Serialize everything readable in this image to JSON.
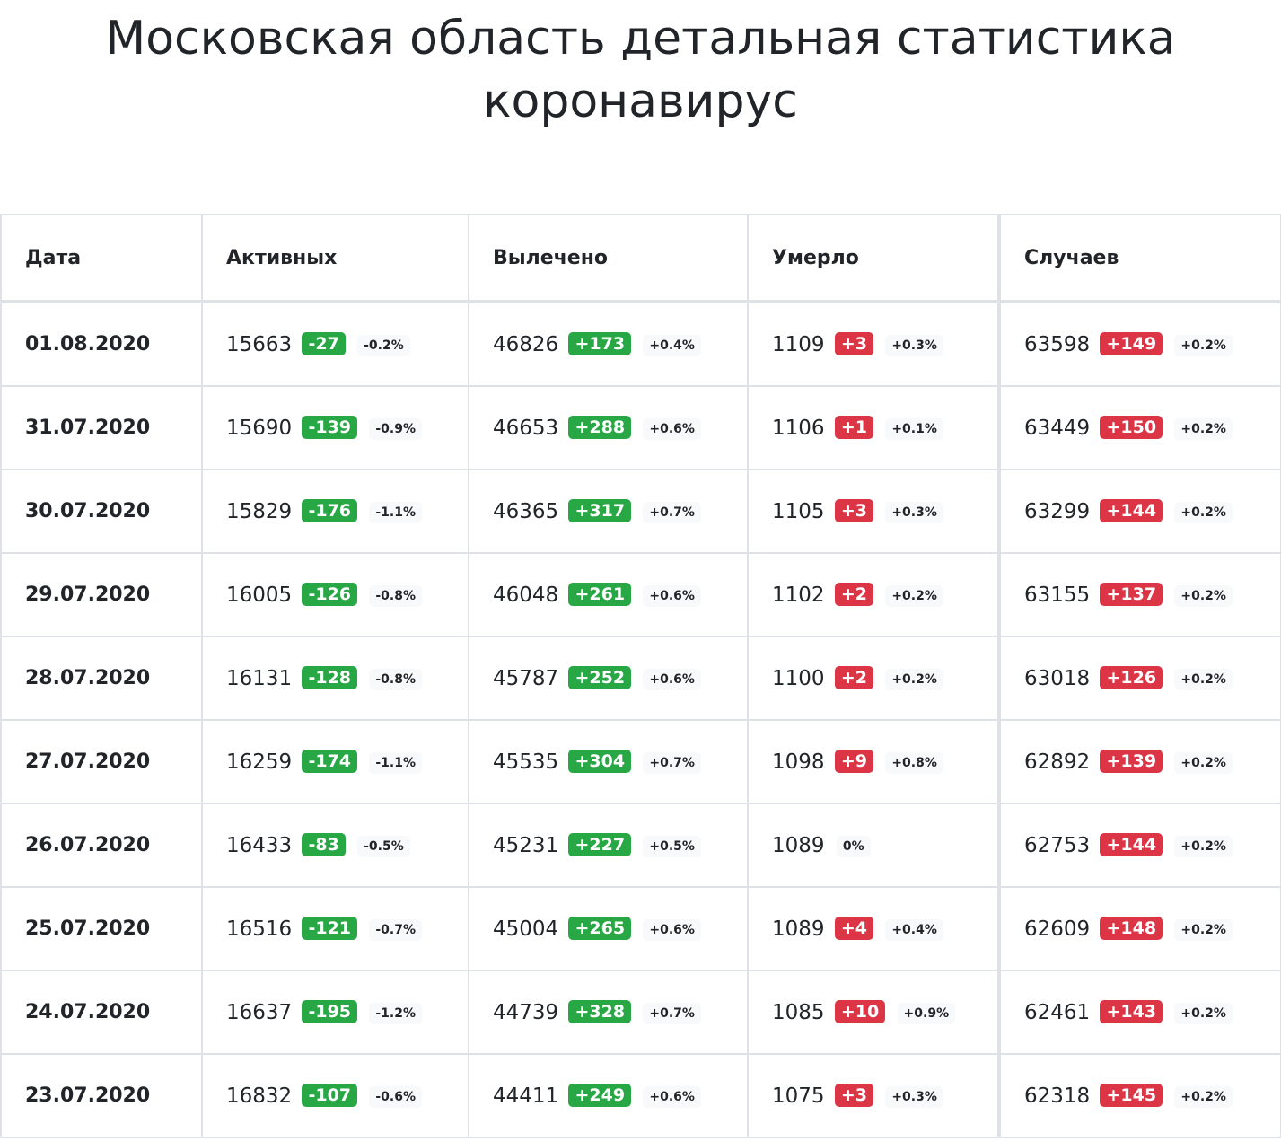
{
  "page": {
    "title": "Московская область детальная статистика коронавирус"
  },
  "table": {
    "headers": {
      "date": "Дата",
      "active": "Активных",
      "recovered": "Вылечено",
      "deaths": "Умерло",
      "cases": "Случаев"
    },
    "rows": [
      {
        "date": "01.08.2020",
        "active": "15663",
        "active_delta": "-27",
        "active_pct": "-0.2%",
        "recovered": "46826",
        "recovered_delta": "+173",
        "recovered_pct": "+0.4%",
        "deaths": "1109",
        "deaths_delta": "+3",
        "deaths_pct": "+0.3%",
        "cases": "63598",
        "cases_delta": "+149",
        "cases_pct": "+0.2%"
      },
      {
        "date": "31.07.2020",
        "active": "15690",
        "active_delta": "-139",
        "active_pct": "-0.9%",
        "recovered": "46653",
        "recovered_delta": "+288",
        "recovered_pct": "+0.6%",
        "deaths": "1106",
        "deaths_delta": "+1",
        "deaths_pct": "+0.1%",
        "cases": "63449",
        "cases_delta": "+150",
        "cases_pct": "+0.2%"
      },
      {
        "date": "30.07.2020",
        "active": "15829",
        "active_delta": "-176",
        "active_pct": "-1.1%",
        "recovered": "46365",
        "recovered_delta": "+317",
        "recovered_pct": "+0.7%",
        "deaths": "1105",
        "deaths_delta": "+3",
        "deaths_pct": "+0.3%",
        "cases": "63299",
        "cases_delta": "+144",
        "cases_pct": "+0.2%"
      },
      {
        "date": "29.07.2020",
        "active": "16005",
        "active_delta": "-126",
        "active_pct": "-0.8%",
        "recovered": "46048",
        "recovered_delta": "+261",
        "recovered_pct": "+0.6%",
        "deaths": "1102",
        "deaths_delta": "+2",
        "deaths_pct": "+0.2%",
        "cases": "63155",
        "cases_delta": "+137",
        "cases_pct": "+0.2%"
      },
      {
        "date": "28.07.2020",
        "active": "16131",
        "active_delta": "-128",
        "active_pct": "-0.8%",
        "recovered": "45787",
        "recovered_delta": "+252",
        "recovered_pct": "+0.6%",
        "deaths": "1100",
        "deaths_delta": "+2",
        "deaths_pct": "+0.2%",
        "cases": "63018",
        "cases_delta": "+126",
        "cases_pct": "+0.2%"
      },
      {
        "date": "27.07.2020",
        "active": "16259",
        "active_delta": "-174",
        "active_pct": "-1.1%",
        "recovered": "45535",
        "recovered_delta": "+304",
        "recovered_pct": "+0.7%",
        "deaths": "1098",
        "deaths_delta": "+9",
        "deaths_pct": "+0.8%",
        "cases": "62892",
        "cases_delta": "+139",
        "cases_pct": "+0.2%"
      },
      {
        "date": "26.07.2020",
        "active": "16433",
        "active_delta": "-83",
        "active_pct": "-0.5%",
        "recovered": "45231",
        "recovered_delta": "+227",
        "recovered_pct": "+0.5%",
        "deaths": "1089",
        "deaths_delta": "",
        "deaths_pct": "0%",
        "cases": "62753",
        "cases_delta": "+144",
        "cases_pct": "+0.2%"
      },
      {
        "date": "25.07.2020",
        "active": "16516",
        "active_delta": "-121",
        "active_pct": "-0.7%",
        "recovered": "45004",
        "recovered_delta": "+265",
        "recovered_pct": "+0.6%",
        "deaths": "1089",
        "deaths_delta": "+4",
        "deaths_pct": "+0.4%",
        "cases": "62609",
        "cases_delta": "+148",
        "cases_pct": "+0.2%"
      },
      {
        "date": "24.07.2020",
        "active": "16637",
        "active_delta": "-195",
        "active_pct": "-1.2%",
        "recovered": "44739",
        "recovered_delta": "+328",
        "recovered_pct": "+0.7%",
        "deaths": "1085",
        "deaths_delta": "+10",
        "deaths_pct": "+0.9%",
        "cases": "62461",
        "cases_delta": "+143",
        "cases_pct": "+0.2%"
      },
      {
        "date": "23.07.2020",
        "active": "16832",
        "active_delta": "-107",
        "active_pct": "-0.6%",
        "recovered": "44411",
        "recovered_delta": "+249",
        "recovered_pct": "+0.6%",
        "deaths": "1075",
        "deaths_delta": "+3",
        "deaths_pct": "+0.3%",
        "cases": "62318",
        "cases_delta": "+145",
        "cases_pct": "+0.2%"
      }
    ]
  },
  "colors": {
    "decrease_badge": "#28a745",
    "increase_badge": "#dc3545",
    "pct_badge_bg": "#f8f9fa",
    "border": "#dee2e6"
  }
}
